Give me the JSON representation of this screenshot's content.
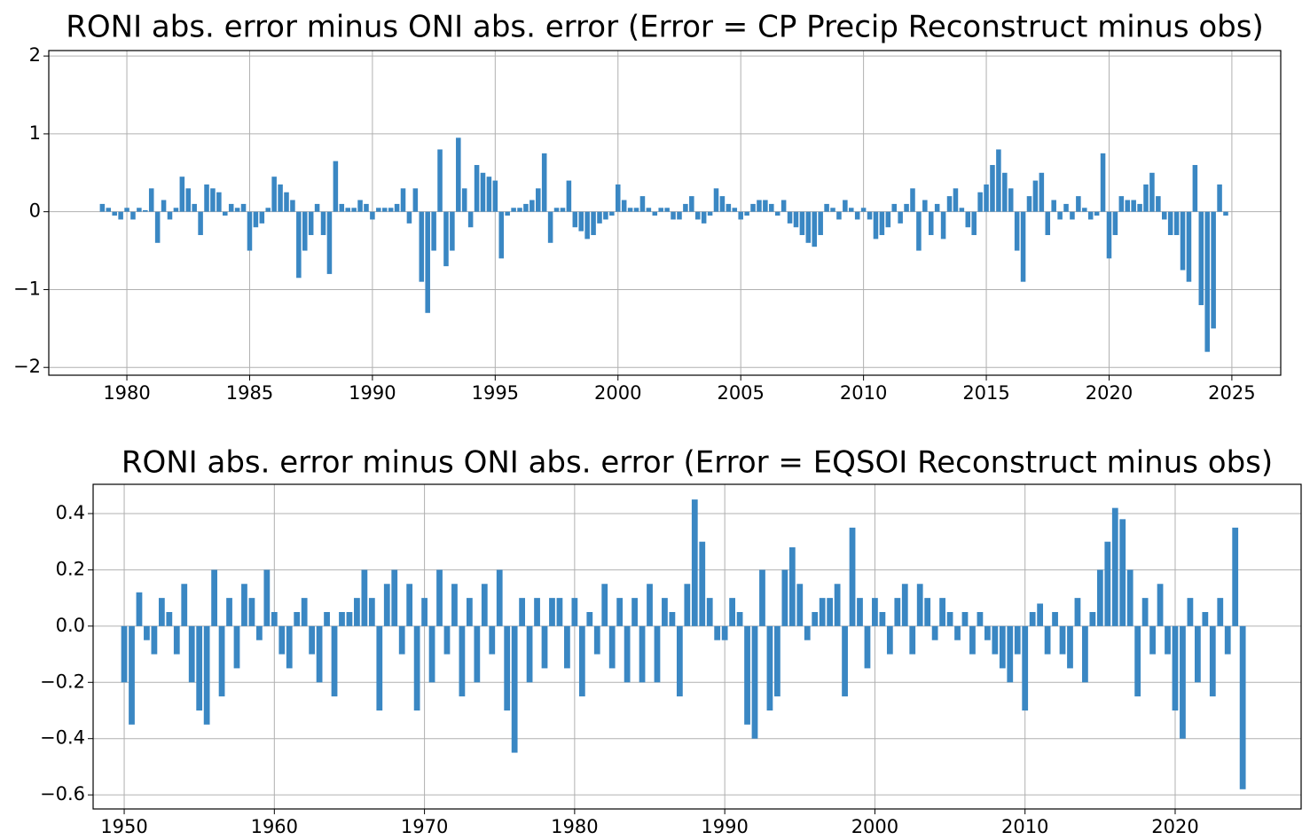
{
  "chart_data": [
    {
      "type": "bar",
      "title": "RONI abs. error minus ONI abs. error (Error = CP Precip Reconstruct minus obs)",
      "color": "#3a87c3",
      "grid": true,
      "xlim": [
        1976.82,
        2026.99
      ],
      "ylim": [
        -2.1,
        2.07
      ],
      "xticks": [
        1980,
        1985,
        1990,
        1995,
        2000,
        2005,
        2010,
        2015,
        2020,
        2025
      ],
      "yticks": [
        {
          "value": -2,
          "label": "−2"
        },
        {
          "value": -1,
          "label": "−1"
        },
        0,
        1,
        2
      ],
      "x": [
        1979,
        1979.25,
        1979.5,
        1979.75,
        1980,
        1980.25,
        1980.5,
        1980.75,
        1981,
        1981.25,
        1981.5,
        1981.75,
        1982,
        1982.25,
        1982.5,
        1982.75,
        1983,
        1983.25,
        1983.5,
        1983.75,
        1984,
        1984.25,
        1984.5,
        1984.75,
        1985,
        1985.25,
        1985.5,
        1985.75,
        1986,
        1986.25,
        1986.5,
        1986.75,
        1987,
        1987.25,
        1987.5,
        1987.75,
        1988,
        1988.25,
        1988.5,
        1988.75,
        1989,
        1989.25,
        1989.5,
        1989.75,
        1990,
        1990.25,
        1990.5,
        1990.75,
        1991,
        1991.25,
        1991.5,
        1991.75,
        1992,
        1992.25,
        1992.5,
        1992.75,
        1993,
        1993.25,
        1993.5,
        1993.75,
        1994,
        1994.25,
        1994.5,
        1994.75,
        1995,
        1995.25,
        1995.5,
        1995.75,
        1996,
        1996.25,
        1996.5,
        1996.75,
        1997,
        1997.25,
        1997.5,
        1997.75,
        1998,
        1998.25,
        1998.5,
        1998.75,
        1999,
        1999.25,
        1999.5,
        1999.75,
        2000,
        2000.25,
        2000.5,
        2000.75,
        2001,
        2001.25,
        2001.5,
        2001.75,
        2002,
        2002.25,
        2002.5,
        2002.75,
        2003,
        2003.25,
        2003.5,
        2003.75,
        2004,
        2004.25,
        2004.5,
        2004.75,
        2005,
        2005.25,
        2005.5,
        2005.75,
        2006,
        2006.25,
        2006.5,
        2006.75,
        2007,
        2007.25,
        2007.5,
        2007.75,
        2008,
        2008.25,
        2008.5,
        2008.75,
        2009,
        2009.25,
        2009.5,
        2009.75,
        2010,
        2010.25,
        2010.5,
        2010.75,
        2011,
        2011.25,
        2011.5,
        2011.75,
        2012,
        2012.25,
        2012.5,
        2012.75,
        2013,
        2013.25,
        2013.5,
        2013.75,
        2014,
        2014.25,
        2014.5,
        2014.75,
        2015,
        2015.25,
        2015.5,
        2015.75,
        2016,
        2016.25,
        2016.5,
        2016.75,
        2017,
        2017.25,
        2017.5,
        2017.75,
        2018,
        2018.25,
        2018.5,
        2018.75,
        2019,
        2019.25,
        2019.5,
        2019.75,
        2020,
        2020.25,
        2020.5,
        2020.75,
        2021,
        2021.25,
        2021.5,
        2021.75,
        2022,
        2022.25,
        2022.5,
        2022.75,
        2023,
        2023.25,
        2023.5,
        2023.75,
        2024,
        2024.25,
        2024.5,
        2024.75
      ],
      "values": [
        0.1,
        0.05,
        -0.05,
        -0.1,
        0.05,
        -0.1,
        0.05,
        0.02,
        0.3,
        -0.4,
        0.15,
        -0.1,
        0.05,
        0.45,
        0.3,
        0.1,
        -0.3,
        0.35,
        0.3,
        0.25,
        -0.05,
        0.1,
        0.05,
        0.1,
        -0.5,
        -0.2,
        -0.15,
        0.05,
        0.45,
        0.35,
        0.25,
        0.15,
        -0.85,
        -0.5,
        -0.3,
        0.1,
        -0.3,
        -0.8,
        0.65,
        0.1,
        0.05,
        0.05,
        0.15,
        0.1,
        -0.1,
        0.05,
        0.05,
        0.05,
        0.1,
        0.3,
        -0.15,
        0.3,
        -0.9,
        -1.3,
        -0.5,
        0.8,
        -0.7,
        -0.5,
        0.95,
        0.3,
        -0.2,
        0.6,
        0.5,
        0.45,
        0.4,
        -0.6,
        -0.05,
        0.05,
        0.05,
        0.1,
        0.15,
        0.3,
        0.75,
        -0.4,
        0.05,
        0.05,
        0.4,
        -0.2,
        -0.25,
        -0.35,
        -0.3,
        -0.15,
        -0.1,
        -0.05,
        0.35,
        0.15,
        0.05,
        0.05,
        0.2,
        0.05,
        -0.05,
        0.05,
        0.05,
        -0.1,
        -0.1,
        0.1,
        0.2,
        -0.1,
        -0.15,
        -0.05,
        0.3,
        0.2,
        0.1,
        0.05,
        -0.1,
        -0.05,
        0.1,
        0.15,
        0.15,
        0.1,
        -0.05,
        0.15,
        -0.15,
        -0.2,
        -0.3,
        -0.4,
        -0.45,
        -0.3,
        0.1,
        0.05,
        -0.1,
        0.15,
        0.05,
        -0.1,
        0.05,
        -0.1,
        -0.35,
        -0.3,
        -0.2,
        0.1,
        -0.15,
        0.1,
        0.3,
        -0.5,
        0.15,
        -0.3,
        0.1,
        -0.35,
        0.2,
        0.3,
        0.05,
        -0.2,
        -0.3,
        0.25,
        0.35,
        0.6,
        0.8,
        0.5,
        0.3,
        -0.5,
        -0.9,
        0.2,
        0.4,
        0.5,
        -0.3,
        0.15,
        -0.1,
        0.1,
        -0.1,
        0.2,
        0.05,
        -0.1,
        -0.05,
        0.75,
        -0.6,
        -0.3,
        0.2,
        0.15,
        0.15,
        0.1,
        0.35,
        0.5,
        0.2,
        -0.1,
        -0.3,
        -0.3,
        -0.75,
        -0.9,
        0.6,
        -1.2,
        -1.8,
        -1.5,
        0.35,
        -0.05
      ]
    },
    {
      "type": "bar",
      "title": "RONI abs. error minus ONI abs. error (Error = EQSOI Reconstruct minus obs)",
      "color": "#3a87c3",
      "grid": true,
      "xlim": [
        1947.93,
        2028.39
      ],
      "ylim": [
        -0.65,
        0.504
      ],
      "xticks": [
        1950,
        1960,
        1970,
        1980,
        1990,
        2000,
        2010,
        2020
      ],
      "yticks": [
        {
          "value": -0.6,
          "label": "−0.6"
        },
        {
          "value": -0.4,
          "label": "−0.4"
        },
        {
          "value": -0.2,
          "label": "−0.2"
        },
        {
          "value": 0,
          "label": "0.0"
        },
        0.2,
        0.4
      ],
      "x": [
        1950,
        1950.5,
        1951,
        1951.5,
        1952,
        1952.5,
        1953,
        1953.5,
        1954,
        1954.5,
        1955,
        1955.5,
        1956,
        1956.5,
        1957,
        1957.5,
        1958,
        1958.5,
        1959,
        1959.5,
        1960,
        1960.5,
        1961,
        1961.5,
        1962,
        1962.5,
        1963,
        1963.5,
        1964,
        1964.5,
        1965,
        1965.5,
        1966,
        1966.5,
        1967,
        1967.5,
        1968,
        1968.5,
        1969,
        1969.5,
        1970,
        1970.5,
        1971,
        1971.5,
        1972,
        1972.5,
        1973,
        1973.5,
        1974,
        1974.5,
        1975,
        1975.5,
        1976,
        1976.5,
        1977,
        1977.5,
        1978,
        1978.5,
        1979,
        1979.5,
        1980,
        1980.5,
        1981,
        1981.5,
        1982,
        1982.5,
        1983,
        1983.5,
        1984,
        1984.5,
        1985,
        1985.5,
        1986,
        1986.5,
        1987,
        1987.5,
        1988,
        1988.5,
        1989,
        1989.5,
        1990,
        1990.5,
        1991,
        1991.5,
        1992,
        1992.5,
        1993,
        1993.5,
        1994,
        1994.5,
        1995,
        1995.5,
        1996,
        1996.5,
        1997,
        1997.5,
        1998,
        1998.5,
        1999,
        1999.5,
        2000,
        2000.5,
        2001,
        2001.5,
        2002,
        2002.5,
        2003,
        2003.5,
        2004,
        2004.5,
        2005,
        2005.5,
        2006,
        2006.5,
        2007,
        2007.5,
        2008,
        2008.5,
        2009,
        2009.5,
        2010,
        2010.5,
        2011,
        2011.5,
        2012,
        2012.5,
        2013,
        2013.5,
        2014,
        2014.5,
        2015,
        2015.5,
        2016,
        2016.5,
        2017,
        2017.5,
        2018,
        2018.5,
        2019,
        2019.5,
        2020,
        2020.5,
        2021,
        2021.5,
        2022,
        2022.5,
        2023,
        2023.5,
        2024,
        2024.5
      ],
      "values": [
        -0.2,
        -0.35,
        0.12,
        -0.05,
        -0.1,
        0.1,
        0.05,
        -0.1,
        0.15,
        -0.2,
        -0.3,
        -0.35,
        0.2,
        -0.25,
        0.1,
        -0.15,
        0.15,
        0.1,
        -0.05,
        0.2,
        0.05,
        -0.1,
        -0.15,
        0.05,
        0.1,
        -0.1,
        -0.2,
        0.05,
        -0.25,
        0.05,
        0.05,
        0.1,
        0.2,
        0.1,
        -0.3,
        0.15,
        0.2,
        -0.1,
        0.15,
        -0.3,
        0.1,
        -0.2,
        0.2,
        -0.1,
        0.15,
        -0.25,
        0.1,
        -0.2,
        0.15,
        -0.1,
        0.2,
        -0.3,
        -0.45,
        0.1,
        -0.2,
        0.1,
        -0.15,
        0.1,
        0.1,
        -0.15,
        0.1,
        -0.25,
        0.05,
        -0.1,
        0.15,
        -0.15,
        0.1,
        -0.2,
        0.1,
        -0.2,
        0.15,
        -0.2,
        0.1,
        0.05,
        -0.25,
        0.15,
        0.45,
        0.3,
        0.1,
        -0.05,
        -0.05,
        0.1,
        0.05,
        -0.35,
        -0.4,
        0.2,
        -0.3,
        -0.25,
        0.2,
        0.28,
        0.15,
        -0.05,
        0.05,
        0.1,
        0.1,
        0.15,
        -0.25,
        0.35,
        0.1,
        -0.15,
        0.1,
        0.05,
        -0.1,
        0.1,
        0.15,
        -0.1,
        0.15,
        0.1,
        -0.05,
        0.1,
        0.05,
        -0.05,
        0.05,
        -0.1,
        0.05,
        -0.05,
        -0.1,
        -0.15,
        -0.2,
        -0.1,
        -0.3,
        0.05,
        0.08,
        -0.1,
        0.05,
        -0.1,
        -0.15,
        0.1,
        -0.2,
        0.05,
        0.2,
        0.3,
        0.42,
        0.38,
        0.2,
        -0.25,
        0.1,
        -0.1,
        0.15,
        -0.1,
        -0.3,
        -0.4,
        0.1,
        -0.2,
        0.05,
        -0.25,
        0.1,
        -0.1,
        0.35,
        -0.58
      ]
    }
  ]
}
